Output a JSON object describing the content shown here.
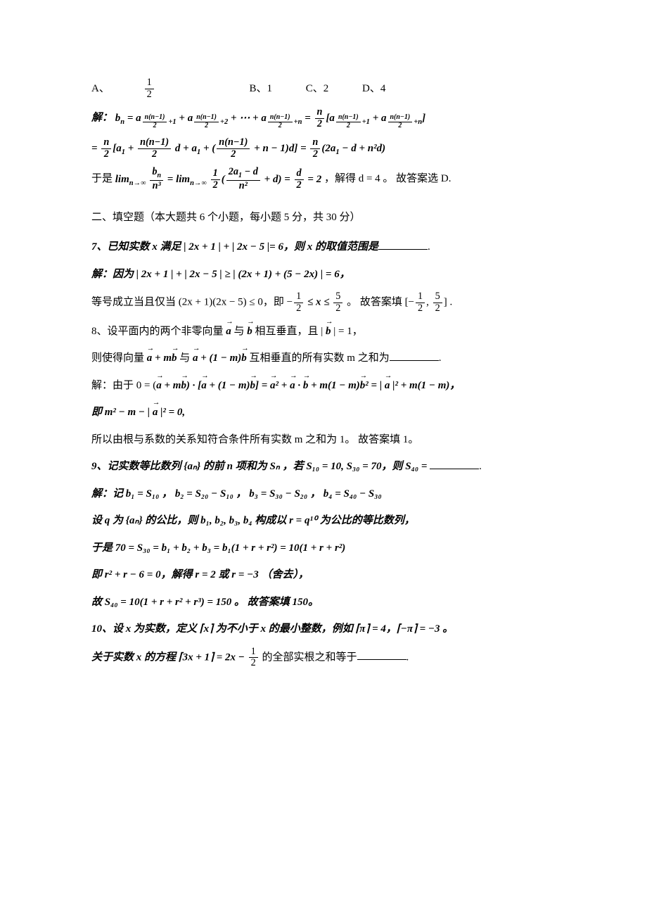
{
  "choices": {
    "A_label": "A、",
    "A_value_num": "1",
    "A_value_den": "2",
    "B": "B、1",
    "C": "C、2",
    "D": "D、4"
  },
  "sol6": {
    "prefix": "解：",
    "line1": "bₙ = a_{n(n−1)/2+1} + a_{n(n−1)/2+2} + ⋯ + a_{n(n−1)/2+n} = (n/2)[a_{n(n−1)/2+1} + a_{n(n−1)/2+n}]",
    "line2": "= (n/2)[a₁ + (n(n−1)/2)d + a₁ + (n(n−1)/2 + n − 1)d] = (n/2)(2a₁ − d + n²d)",
    "line3_pre": "于是",
    "line3_mid": "lim_{n→∞} bₙ/n³ = lim_{n→∞} (1/2)((2a₁−d)/n² + d) = d/2 = 2",
    "line3_end": "，解得 d = 4 。 故答案选 D."
  },
  "section2_title": "二、填空题（本大题共 6 个小题，每小题 5 分，共 30 分）",
  "q7": {
    "text_pre": "7、已知实数 x 满足 | 2x + 1 | + | 2x − 5 |= 6，则 x 的取值范围是",
    "sol_prefix": "解：因为 | 2x + 1 | + | 2x − 5 | ≥ | (2x + 1) + (5 − 2x) | = 6，",
    "sol_line2_pre": "等号成立当且仅当 (2x + 1)(2x − 5) ≤ 0，即 −",
    "neg_half_num": "1",
    "neg_half_den": "2",
    "sol_line2_mid": " ≤ x ≤ ",
    "five_half_num": "5",
    "five_half_den": "2",
    "sol_line2_ans": "。 故答案填 [−",
    "sol_line2_ans2": ", ",
    "sol_line2_end": "] ."
  },
  "q8": {
    "text1_pre": "8、设平面内的两个非零向量 ",
    "text1_mid": " 与 ",
    "text1_post": " 相互垂直，且 | ",
    "text1_end": " | = 1，",
    "text2_pre": "则使得向量 ",
    "text2_mid1": " + m",
    "text2_mid2": " 与 ",
    "text2_mid3": " + (1 − m)",
    "text2_post": " 互相垂直的所有实数 m 之和为",
    "sol_prefix": "解：由于 0 = (",
    "sol_l1a": " + m",
    "sol_l1b": ") · [",
    "sol_l1c": " + (1 − m)",
    "sol_l1d": "] = ",
    "sol_l1e": "² + ",
    "sol_l1f": " · ",
    "sol_l1g": " + m(1 − m)",
    "sol_l1h": "² = | ",
    "sol_l1i": " |² + m(1 − m)，",
    "sol_l2": "即 m² − m − | a |² = 0,",
    "sol_l3": "所以由根与系数的关系知符合条件所有实数 m 之和为 1。 故答案填 1。"
  },
  "q9": {
    "text": "9、记实数等比数列 {aₙ} 的前 n 项和为 Sₙ ，若 S₁₀ = 10, S₃₀ = 70，则 S₄₀ = ",
    "sol_l1": "解：记 b₁ = S₁₀ ， b₂ = S₂₀ − S₁₀ ， b₃ = S₃₀ − S₂₀ ， b₄ = S₄₀ − S₃₀",
    "sol_l2": "设 q 为 {aₙ} 的公比，则 b₁, b₂, b₃, b₄ 构成以 r = q¹⁰ 为公比的等比数列，",
    "sol_l3": "于是 70 = S₃₀ = b₁ + b₂ + b₃ = b₁(1 + r + r²) = 10(1 + r + r²)",
    "sol_l4": "即 r² + r − 6 = 0，解得 r = 2 或 r = −3 （舍去），",
    "sol_l5": "故 S₄₀ = 10(1 + r + r² + r³) = 150 。 故答案填 150。"
  },
  "q10": {
    "text1": "10、设 x 为实数，定义 ⌈x⌉ 为不小于 x 的最小整数，例如 ⌈π⌉ = 4，⌈−π⌉ = −3 。",
    "text2_pre": "关于实数 x 的方程 ⌈3x + 1⌉ = 2x − ",
    "frac_num": "1",
    "frac_den": "2",
    "text2_post": " 的全部实根之和等于",
    "text2_end": "."
  },
  "labels": {
    "a": "a",
    "b": "b"
  }
}
